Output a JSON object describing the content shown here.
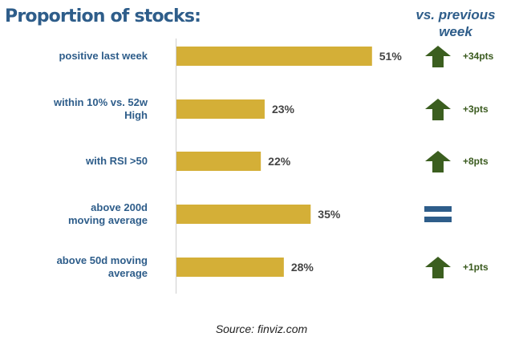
{
  "header": {
    "title": "Proportion of stocks:",
    "comparison_label": "vs. previous week"
  },
  "source": "Source: finviz.com",
  "colors": {
    "bar": "#d4af37",
    "title": "#2e5d8a",
    "arrow_up": "#3b5e1f",
    "unchanged": "#2e5d8a"
  },
  "chart_data": {
    "type": "bar",
    "orientation": "horizontal",
    "categories": [
      "positive last week",
      "within 10% vs. 52w High",
      "with RSI >50",
      "above 200d moving average",
      "above 50d moving average"
    ],
    "category_lines": [
      [
        "positive last week"
      ],
      [
        "within 10% vs. 52w",
        "High"
      ],
      [
        "with RSI >50"
      ],
      [
        "above 200d",
        "moving average"
      ],
      [
        "above 50d moving",
        "average"
      ]
    ],
    "values": [
      51,
      23,
      22,
      35,
      28
    ],
    "value_labels": [
      "51%",
      "23%",
      "22%",
      "35%",
      "28%"
    ],
    "unit": "%",
    "xlim": [
      0,
      100
    ],
    "grid": false,
    "changes": [
      {
        "direction": "up",
        "icon": "up-arrow-icon",
        "label": "+34pts"
      },
      {
        "direction": "up",
        "icon": "up-arrow-icon",
        "label": "+3pts"
      },
      {
        "direction": "up",
        "icon": "up-arrow-icon",
        "label": "+8pts"
      },
      {
        "direction": "unchanged",
        "icon": "equals-icon",
        "label": ""
      },
      {
        "direction": "up",
        "icon": "up-arrow-icon",
        "label": "+1pts"
      }
    ]
  }
}
